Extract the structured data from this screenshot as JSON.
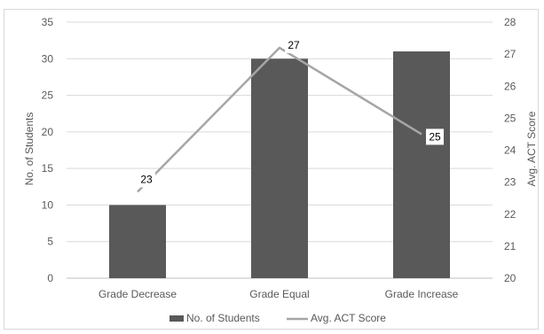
{
  "chart_data": {
    "type": "bar",
    "title": "",
    "categories": [
      "Grade Decrease",
      "Grade Equal",
      "Grade Increase"
    ],
    "series": [
      {
        "name": "No. of Students",
        "type": "bar",
        "axis": "left",
        "values": [
          10,
          30,
          31
        ],
        "color": "#595959"
      },
      {
        "name": "Avg. ACT Score",
        "type": "line",
        "axis": "right",
        "values": [
          22.7,
          27.2,
          24.5
        ],
        "labels": [
          "23",
          "27",
          "25"
        ],
        "color": "#a6a6a6"
      }
    ],
    "ylabel": "No. of Students",
    "y2label": "Avg. ACT Score",
    "ylim": [
      0,
      35
    ],
    "y2lim": [
      20,
      28
    ],
    "yticks": [
      "0",
      "5",
      "10",
      "15",
      "20",
      "25",
      "30",
      "35"
    ],
    "y2ticks": [
      "20",
      "21",
      "22",
      "23",
      "24",
      "25",
      "26",
      "27",
      "28"
    ],
    "grid": true,
    "legend": "bottom"
  }
}
